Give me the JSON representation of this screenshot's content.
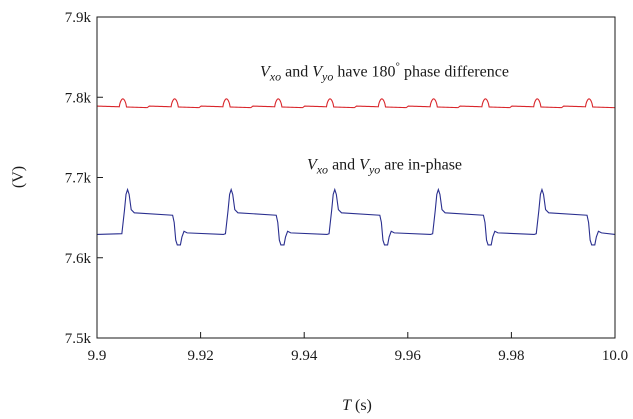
{
  "chart_data": {
    "type": "line",
    "title": "",
    "xlabel": {
      "symbol": "T",
      "unit": " (s)"
    },
    "ylabel": "(V)",
    "xlim": [
      9.9,
      10.0
    ],
    "ylim": [
      7500,
      7900
    ],
    "x_ticks": [
      9.9,
      9.92,
      9.94,
      9.96,
      9.98,
      10.0
    ],
    "x_tick_labels": [
      "9.9",
      "9.92",
      "9.94",
      "9.96",
      "9.98",
      "10.0"
    ],
    "y_ticks": [
      7500,
      7600,
      7700,
      7800,
      7900
    ],
    "y_tick_labels": [
      "7.5k",
      "7.6k",
      "7.7k",
      "7.8k",
      "7.9k"
    ],
    "grid": false,
    "period_s": 0.01,
    "series": [
      {
        "color": "#d9262b",
        "waveform": "ripple",
        "baseline_v": 7789,
        "peak_v": 7799,
        "slope_v_per_period": 2,
        "event_x": [
          9.905,
          9.915,
          9.925,
          9.935,
          9.945,
          9.955,
          9.965,
          9.975,
          9.985,
          9.995
        ]
      },
      {
        "color": "#2a2f8f",
        "waveform": "step",
        "low_v": 7629,
        "high_v": 7656,
        "peak_v": 7685,
        "dip_v": 7616,
        "rise_x": [
          9.905,
          9.925,
          9.945,
          9.965,
          9.985
        ],
        "fall_x": [
          9.915,
          9.935,
          9.955,
          9.975,
          9.995
        ]
      }
    ],
    "annotations": [
      {
        "parts": [
          {
            "text": "V",
            "italic": true
          },
          {
            "text": "xo",
            "italic": true,
            "sub": true
          },
          {
            "text": " and "
          },
          {
            "text": "V",
            "italic": true
          },
          {
            "text": "yo",
            "italic": true,
            "sub": true
          },
          {
            "text": " have 180"
          },
          {
            "text": "°",
            "sup": true
          },
          {
            "text": " phase difference"
          }
        ],
        "x": 9.9555,
        "y": 7826
      },
      {
        "parts": [
          {
            "text": "V",
            "italic": true
          },
          {
            "text": "xo",
            "italic": true,
            "sub": true
          },
          {
            "text": " and "
          },
          {
            "text": "V",
            "italic": true
          },
          {
            "text": "yo",
            "italic": true,
            "sub": true
          },
          {
            "text": " are in-phase"
          }
        ],
        "x": 9.9555,
        "y": 7710
      }
    ]
  }
}
